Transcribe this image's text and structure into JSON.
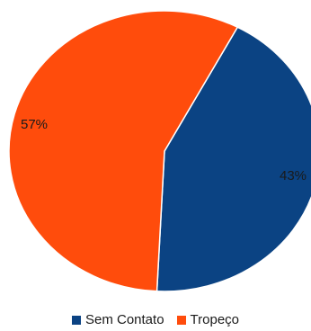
{
  "chart_data": {
    "type": "pie",
    "title": "",
    "series": [
      {
        "name": "Sem Contato",
        "value": 43,
        "label": "43%",
        "color": "#0b4383"
      },
      {
        "name": "Tropeço",
        "value": 57,
        "label": "57%",
        "color": "#ff4c0c"
      }
    ],
    "start_angle_deg": 62,
    "direction": "clockwise",
    "legend_position": "bottom",
    "slice_border_color": "#ffffff"
  }
}
